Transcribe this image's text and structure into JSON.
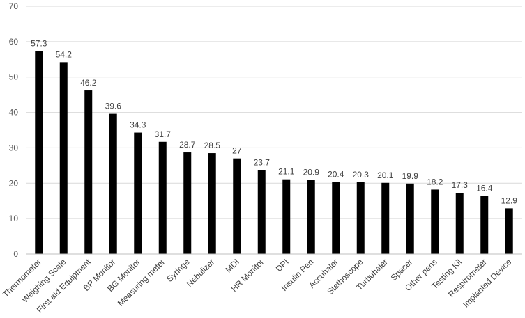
{
  "chart_data": {
    "type": "bar",
    "title": "",
    "xlabel": "",
    "ylabel": "",
    "ylim": [
      0,
      70
    ],
    "yticks": [
      0,
      10,
      20,
      30,
      40,
      50,
      60,
      70
    ],
    "grid": true,
    "legend": "none",
    "bar_color": "#000000",
    "categories": [
      "Thermometer",
      "Weighing Scale",
      "First aid Equipment",
      "BP Monitor",
      "BG Monitor",
      "Measuring meter",
      "Syringe",
      "Nebulizer",
      "MDI",
      "HR Monitor",
      "DPI",
      "Insulin Pen",
      "Accuhaler",
      "Stethoscope",
      "Turbuhaler",
      "Spacer",
      "Other pens",
      "Testing Kit",
      "Respirometer",
      "Implanted Device"
    ],
    "values": [
      57.3,
      54.2,
      46.2,
      39.6,
      34.3,
      31.7,
      28.7,
      28.5,
      27,
      23.7,
      21.1,
      20.9,
      20.4,
      20.3,
      20.1,
      19.9,
      18.2,
      17.3,
      16.4,
      12.9
    ],
    "data_labels": [
      "57.3",
      "54.2",
      "46.2",
      "39.6",
      "34.3",
      "31.7",
      "28.7",
      "28.5",
      "27",
      "23.7",
      "21.1",
      "20.9",
      "20.4",
      "20.3",
      "20.1",
      "19.9",
      "18.2",
      "17.3",
      "16.4",
      "12.9"
    ]
  }
}
